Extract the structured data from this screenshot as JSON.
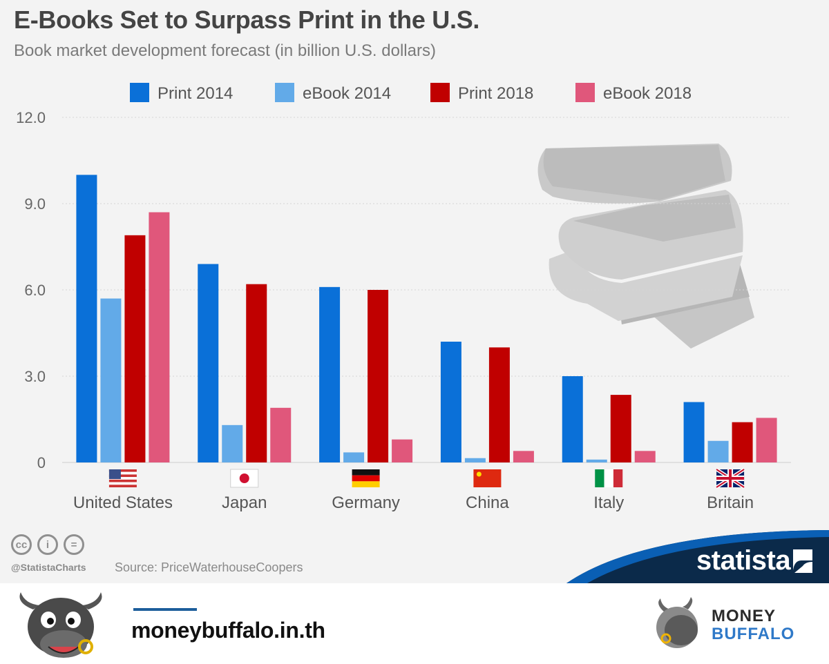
{
  "chart_data": {
    "type": "bar",
    "title": "E-Books Set to Surpass Print in the U.S.",
    "subtitle": "Book market development forecast (in billion U.S. dollars)",
    "categories": [
      "United States",
      "Japan",
      "Germany",
      "China",
      "Italy",
      "Britain"
    ],
    "series": [
      {
        "name": "Print 2014",
        "color": "#0a70d8",
        "values": [
          10.0,
          6.9,
          6.1,
          4.2,
          3.0,
          2.1
        ]
      },
      {
        "name": "eBook 2014",
        "color": "#62aae8",
        "values": [
          5.7,
          1.3,
          0.35,
          0.15,
          0.1,
          0.75
        ]
      },
      {
        "name": "Print 2018",
        "color": "#c00000",
        "values": [
          7.9,
          6.2,
          6.0,
          4.0,
          2.35,
          1.4
        ]
      },
      {
        "name": "eBook 2018",
        "color": "#e0577b",
        "values": [
          8.7,
          1.9,
          0.8,
          0.4,
          0.4,
          1.55
        ]
      }
    ],
    "yticks": [
      "0",
      "3.0",
      "6.0",
      "9.0",
      "12.0"
    ],
    "ylim": [
      0,
      12
    ],
    "grid": true,
    "legend": "top",
    "flags": [
      "us-flag",
      "japan-flag",
      "germany-flag",
      "china-flag",
      "italy-flag",
      "britain-flag"
    ]
  },
  "footer": {
    "handle": "@StatistaCharts",
    "source": "Source: PriceWaterhouseCoopers",
    "statista_logo": "statista",
    "license_icons": [
      "cc-icon",
      "attribution-icon",
      "no-derivatives-icon"
    ]
  },
  "brand": {
    "site": "moneybuffalo.in.th",
    "logo_word_1": "MONEY",
    "logo_word_2": "BUFFALO",
    "mascot": "buffalo-mascot-icon"
  }
}
